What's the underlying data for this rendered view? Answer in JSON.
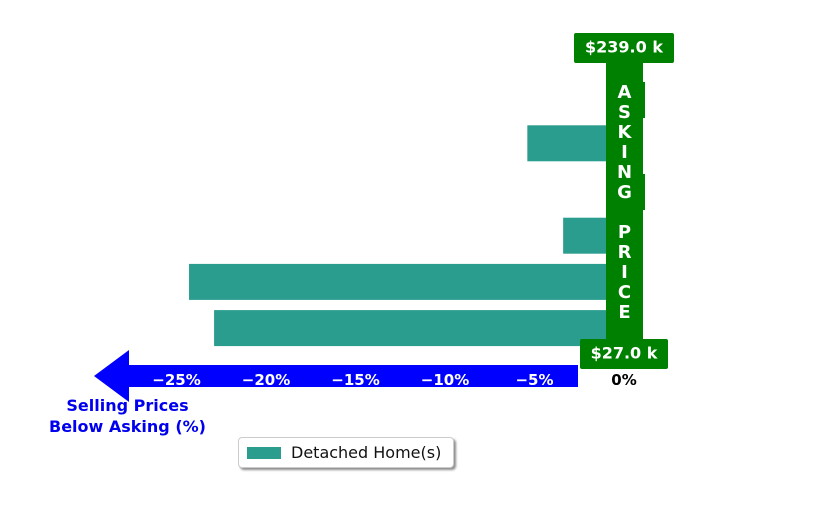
{
  "chart_data": {
    "type": "bar",
    "orientation": "horizontal",
    "series": [
      {
        "name": "Detached Home(s)",
        "color": "#2a9d8f",
        "values": [
          0,
          -5.4,
          0,
          -3.4,
          -24.3,
          -22.9
        ]
      }
    ],
    "x_ticks": [
      "−25%",
      "−20%",
      "−15%",
      "−10%",
      "−5%",
      "0%"
    ],
    "x_tick_values": [
      -25,
      -20,
      -15,
      -10,
      -5,
      0
    ],
    "xlim": [
      -30,
      2
    ],
    "xlabel": "Selling Prices\nBelow Asking (%)",
    "xlabel_color": "#0000ee",
    "arrow_color": "#0000ff",
    "asking_band": {
      "text": "ASKING PRICE",
      "top_label": "$239.0 k",
      "bottom_label": "$27.0 k",
      "color": "#008000"
    },
    "legend": {
      "label": "Detached Home(s)",
      "placement": "bottom-center"
    },
    "grid": false
  }
}
